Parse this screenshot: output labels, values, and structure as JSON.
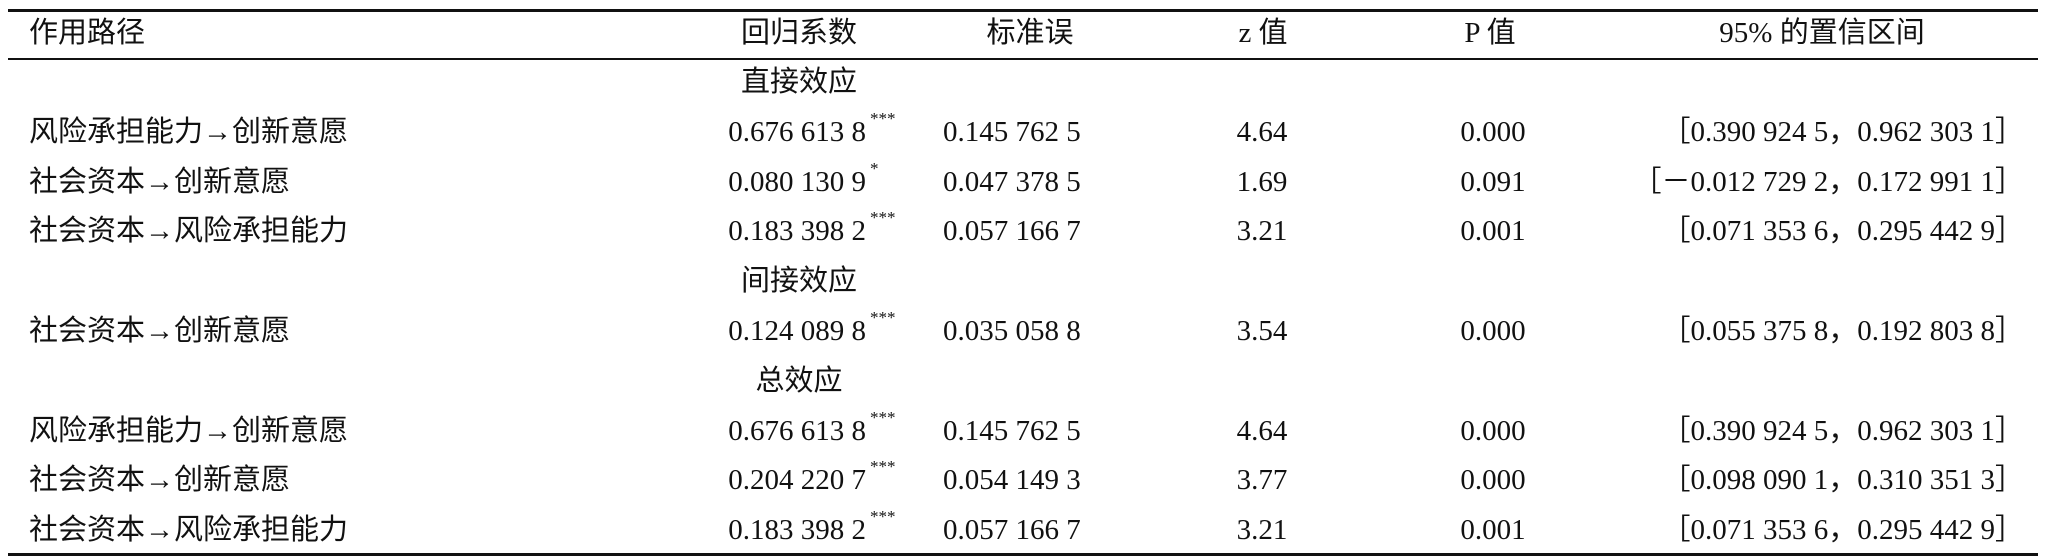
{
  "table": {
    "header": [
      "作用路径",
      "回归系数",
      "标准误",
      "z 值",
      "P 值",
      "95% 的置信区间"
    ],
    "sections": [
      {
        "title": "直接效应",
        "rows": [
          {
            "path": "风险承担能力→创新意愿",
            "coef": "0.676 613 8",
            "stars": "***",
            "se": "0.145 762 5",
            "z": "4.64",
            "p": "0.000",
            "ci": "［0.390 924 5，0.962 303 1］"
          },
          {
            "path": "社会资本→创新意愿",
            "coef": "0.080 130 9",
            "stars": "*",
            "se": "0.047 378 5",
            "z": "1.69",
            "p": "0.091",
            "ci": "［－0.012 729 2，0.172 991 1］"
          },
          {
            "path": "社会资本→风险承担能力",
            "coef": "0.183 398 2",
            "stars": "***",
            "se": "0.057 166 7",
            "z": "3.21",
            "p": "0.001",
            "ci": "［0.071 353 6，0.295 442 9］"
          }
        ]
      },
      {
        "title": "间接效应",
        "rows": [
          {
            "path": "社会资本→创新意愿",
            "coef": "0.124 089 8",
            "stars": "***",
            "se": "0.035 058 8",
            "z": "3.54",
            "p": "0.000",
            "ci": "［0.055 375 8，0.192 803 8］"
          }
        ]
      },
      {
        "title": "总效应",
        "rows": [
          {
            "path": "风险承担能力→创新意愿",
            "coef": "0.676 613 8",
            "stars": "***",
            "se": "0.145 762 5",
            "z": "4.64",
            "p": "0.000",
            "ci": "［0.390 924 5，0.962 303 1］"
          },
          {
            "path": "社会资本→创新意愿",
            "coef": "0.204 220 7",
            "stars": "***",
            "se": "0.054 149 3",
            "z": "3.77",
            "p": "0.000",
            "ci": "［0.098 090 1，0.310 351 3］"
          },
          {
            "path": "社会资本→风险承担能力",
            "coef": "0.183 398 2",
            "stars": "***",
            "se": "0.057 166 7",
            "z": "3.21",
            "p": "0.001",
            "ci": "［0.071 353 6，0.295 442 9］"
          }
        ]
      }
    ]
  }
}
